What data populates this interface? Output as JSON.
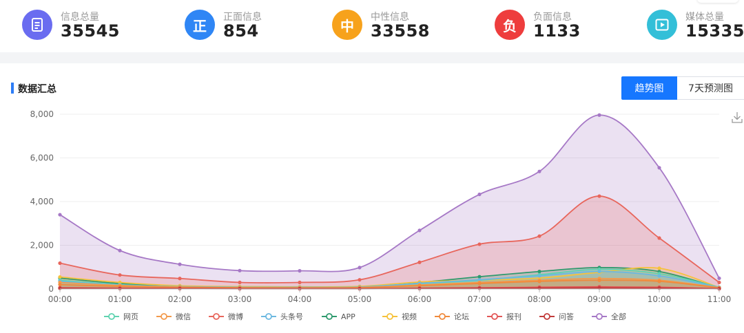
{
  "stats": [
    {
      "label": "信息总量",
      "value": "35545",
      "icon_glyph": "",
      "icon": "document-icon",
      "color": "#6a6cf0"
    },
    {
      "label": "正面信息",
      "value": "854",
      "icon_glyph": "正",
      "icon": "positive-icon",
      "color": "#2f86f5"
    },
    {
      "label": "中性信息",
      "value": "33558",
      "icon_glyph": "中",
      "icon": "neutral-icon",
      "color": "#f7a21c"
    },
    {
      "label": "负面信息",
      "value": "1133",
      "icon_glyph": "负",
      "icon": "negative-icon",
      "color": "#ee3d3d"
    },
    {
      "label": "媒体总量",
      "value": "15335",
      "icon_glyph": "",
      "icon": "play-icon",
      "color": "#33bfd8"
    }
  ],
  "panel": {
    "title": "数据汇总",
    "tabs": [
      {
        "label": "趋势图",
        "active": true
      },
      {
        "label": "7天预测图",
        "active": false
      }
    ],
    "download_icon": "download-icon"
  },
  "chart_data": {
    "type": "area",
    "x": [
      "00:00",
      "01:00",
      "02:00",
      "03:00",
      "04:00",
      "05:00",
      "06:00",
      "07:00",
      "08:00",
      "09:00",
      "10:00",
      "11:00"
    ],
    "ylim": [
      0,
      8000
    ],
    "yticks": [
      0,
      2000,
      4000,
      6000,
      8000
    ],
    "ytick_labels": [
      "0",
      "2,000",
      "4,000",
      "6,000",
      "8,000"
    ],
    "grid": true,
    "legend_position": "bottom",
    "series": [
      {
        "name": "网页",
        "color": "#5fd3b0",
        "values": [
          400,
          200,
          100,
          80,
          70,
          90,
          250,
          400,
          650,
          900,
          700,
          80
        ]
      },
      {
        "name": "微信",
        "color": "#f39a4c",
        "values": [
          300,
          160,
          90,
          60,
          60,
          70,
          180,
          300,
          400,
          480,
          400,
          60
        ]
      },
      {
        "name": "微博",
        "color": "#e8665c",
        "values": [
          1180,
          640,
          480,
          300,
          300,
          420,
          1220,
          2050,
          2420,
          4250,
          2330,
          300
        ]
      },
      {
        "name": "头条号",
        "color": "#6cb8e0",
        "values": [
          350,
          180,
          110,
          80,
          80,
          90,
          260,
          420,
          600,
          800,
          600,
          70
        ]
      },
      {
        "name": "APP",
        "color": "#2e9a6e",
        "values": [
          500,
          250,
          120,
          90,
          80,
          100,
          300,
          560,
          800,
          980,
          800,
          50
        ]
      },
      {
        "name": "视频",
        "color": "#f6c23b",
        "values": [
          550,
          300,
          150,
          110,
          100,
          120,
          320,
          400,
          500,
          760,
          950,
          70
        ]
      },
      {
        "name": "论坛",
        "color": "#f08a3c",
        "values": [
          200,
          120,
          80,
          60,
          50,
          60,
          150,
          250,
          350,
          400,
          350,
          50
        ]
      },
      {
        "name": "报刊",
        "color": "#e25555",
        "values": [
          60,
          40,
          30,
          20,
          20,
          20,
          40,
          60,
          80,
          100,
          80,
          20
        ]
      },
      {
        "name": "问答",
        "color": "#c23b3b",
        "values": [
          30,
          20,
          15,
          10,
          10,
          10,
          20,
          30,
          40,
          50,
          40,
          10
        ]
      },
      {
        "name": "全部",
        "color": "#a678c6",
        "values": [
          3400,
          1760,
          1130,
          840,
          830,
          980,
          2680,
          4330,
          5380,
          7960,
          5550,
          490
        ]
      }
    ]
  }
}
